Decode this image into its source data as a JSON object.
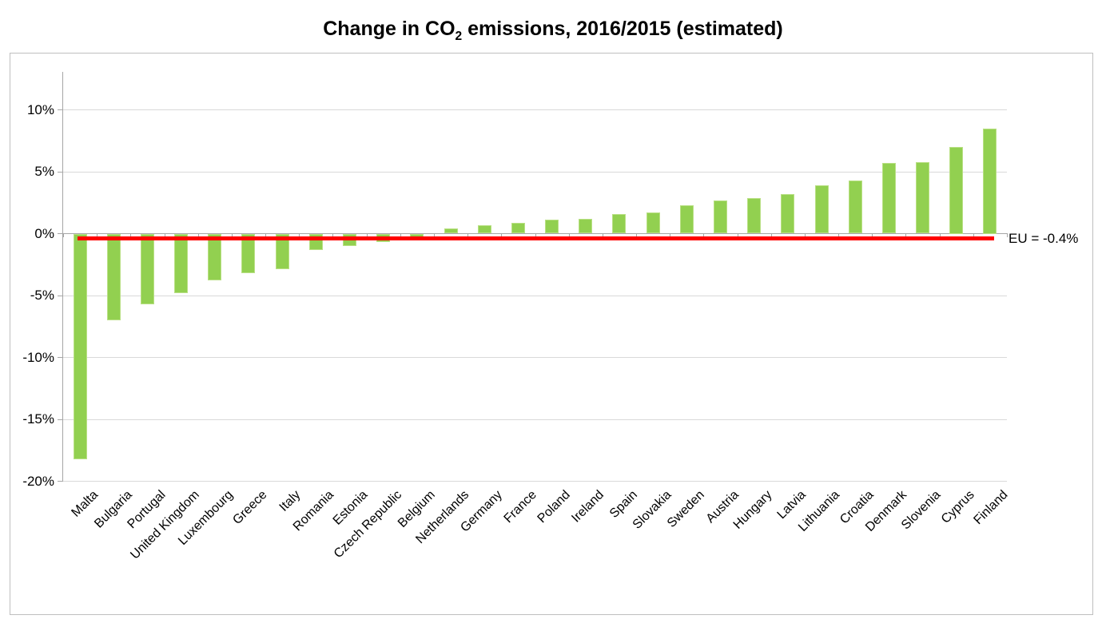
{
  "title": {
    "prefix": "Change in CO",
    "subscript": "2",
    "suffix": " emissions, 2016/2015 (estimated)"
  },
  "chart_data": {
    "type": "bar",
    "title": "Change in CO2 emissions, 2016/2015 (estimated)",
    "xlabel": "",
    "ylabel": "",
    "unit": "%",
    "categories": [
      "Malta",
      "Bulgaria",
      "Portugal",
      "United Kingdom",
      "Luxembourg",
      "Greece",
      "Italy",
      "Romania",
      "Estonia",
      "Czech Republic",
      "Belgium",
      "Netherlands",
      "Germany",
      "France",
      "Poland",
      "Ireland",
      "Spain",
      "Slovakia",
      "Sweden",
      "Austria",
      "Hungary",
      "Latvia",
      "Lithuania",
      "Croatia",
      "Denmark",
      "Slovenia",
      "Cyprus",
      "Finland"
    ],
    "values": [
      -18.2,
      -7.0,
      -5.7,
      -4.8,
      -3.8,
      -3.2,
      -2.9,
      -1.3,
      -1.0,
      -0.7,
      -0.5,
      0.4,
      0.7,
      0.9,
      1.1,
      1.2,
      1.6,
      1.7,
      2.3,
      2.7,
      2.9,
      3.2,
      3.9,
      4.3,
      5.7,
      5.8,
      7.0,
      8.5
    ],
    "y_tick_labels": [
      "10%",
      "5%",
      "0%",
      "-5%",
      "-10%",
      "-15%",
      "-20%"
    ],
    "y_tick_values": [
      10,
      5,
      0,
      -5,
      -10,
      -15,
      -20
    ],
    "ylim": [
      -20,
      13
    ],
    "grid": true,
    "legend": "none",
    "reference_line": {
      "label": "EU = -0.4%",
      "value": -0.4,
      "color": "#ff0000"
    },
    "colors": {
      "bar_fill": "#92d050",
      "bar_border": "#b9e084",
      "gridline": "#d9d9d9",
      "axis": "#a6a6a6",
      "frame_border": "#bfbfbf",
      "text": "#000000"
    }
  }
}
